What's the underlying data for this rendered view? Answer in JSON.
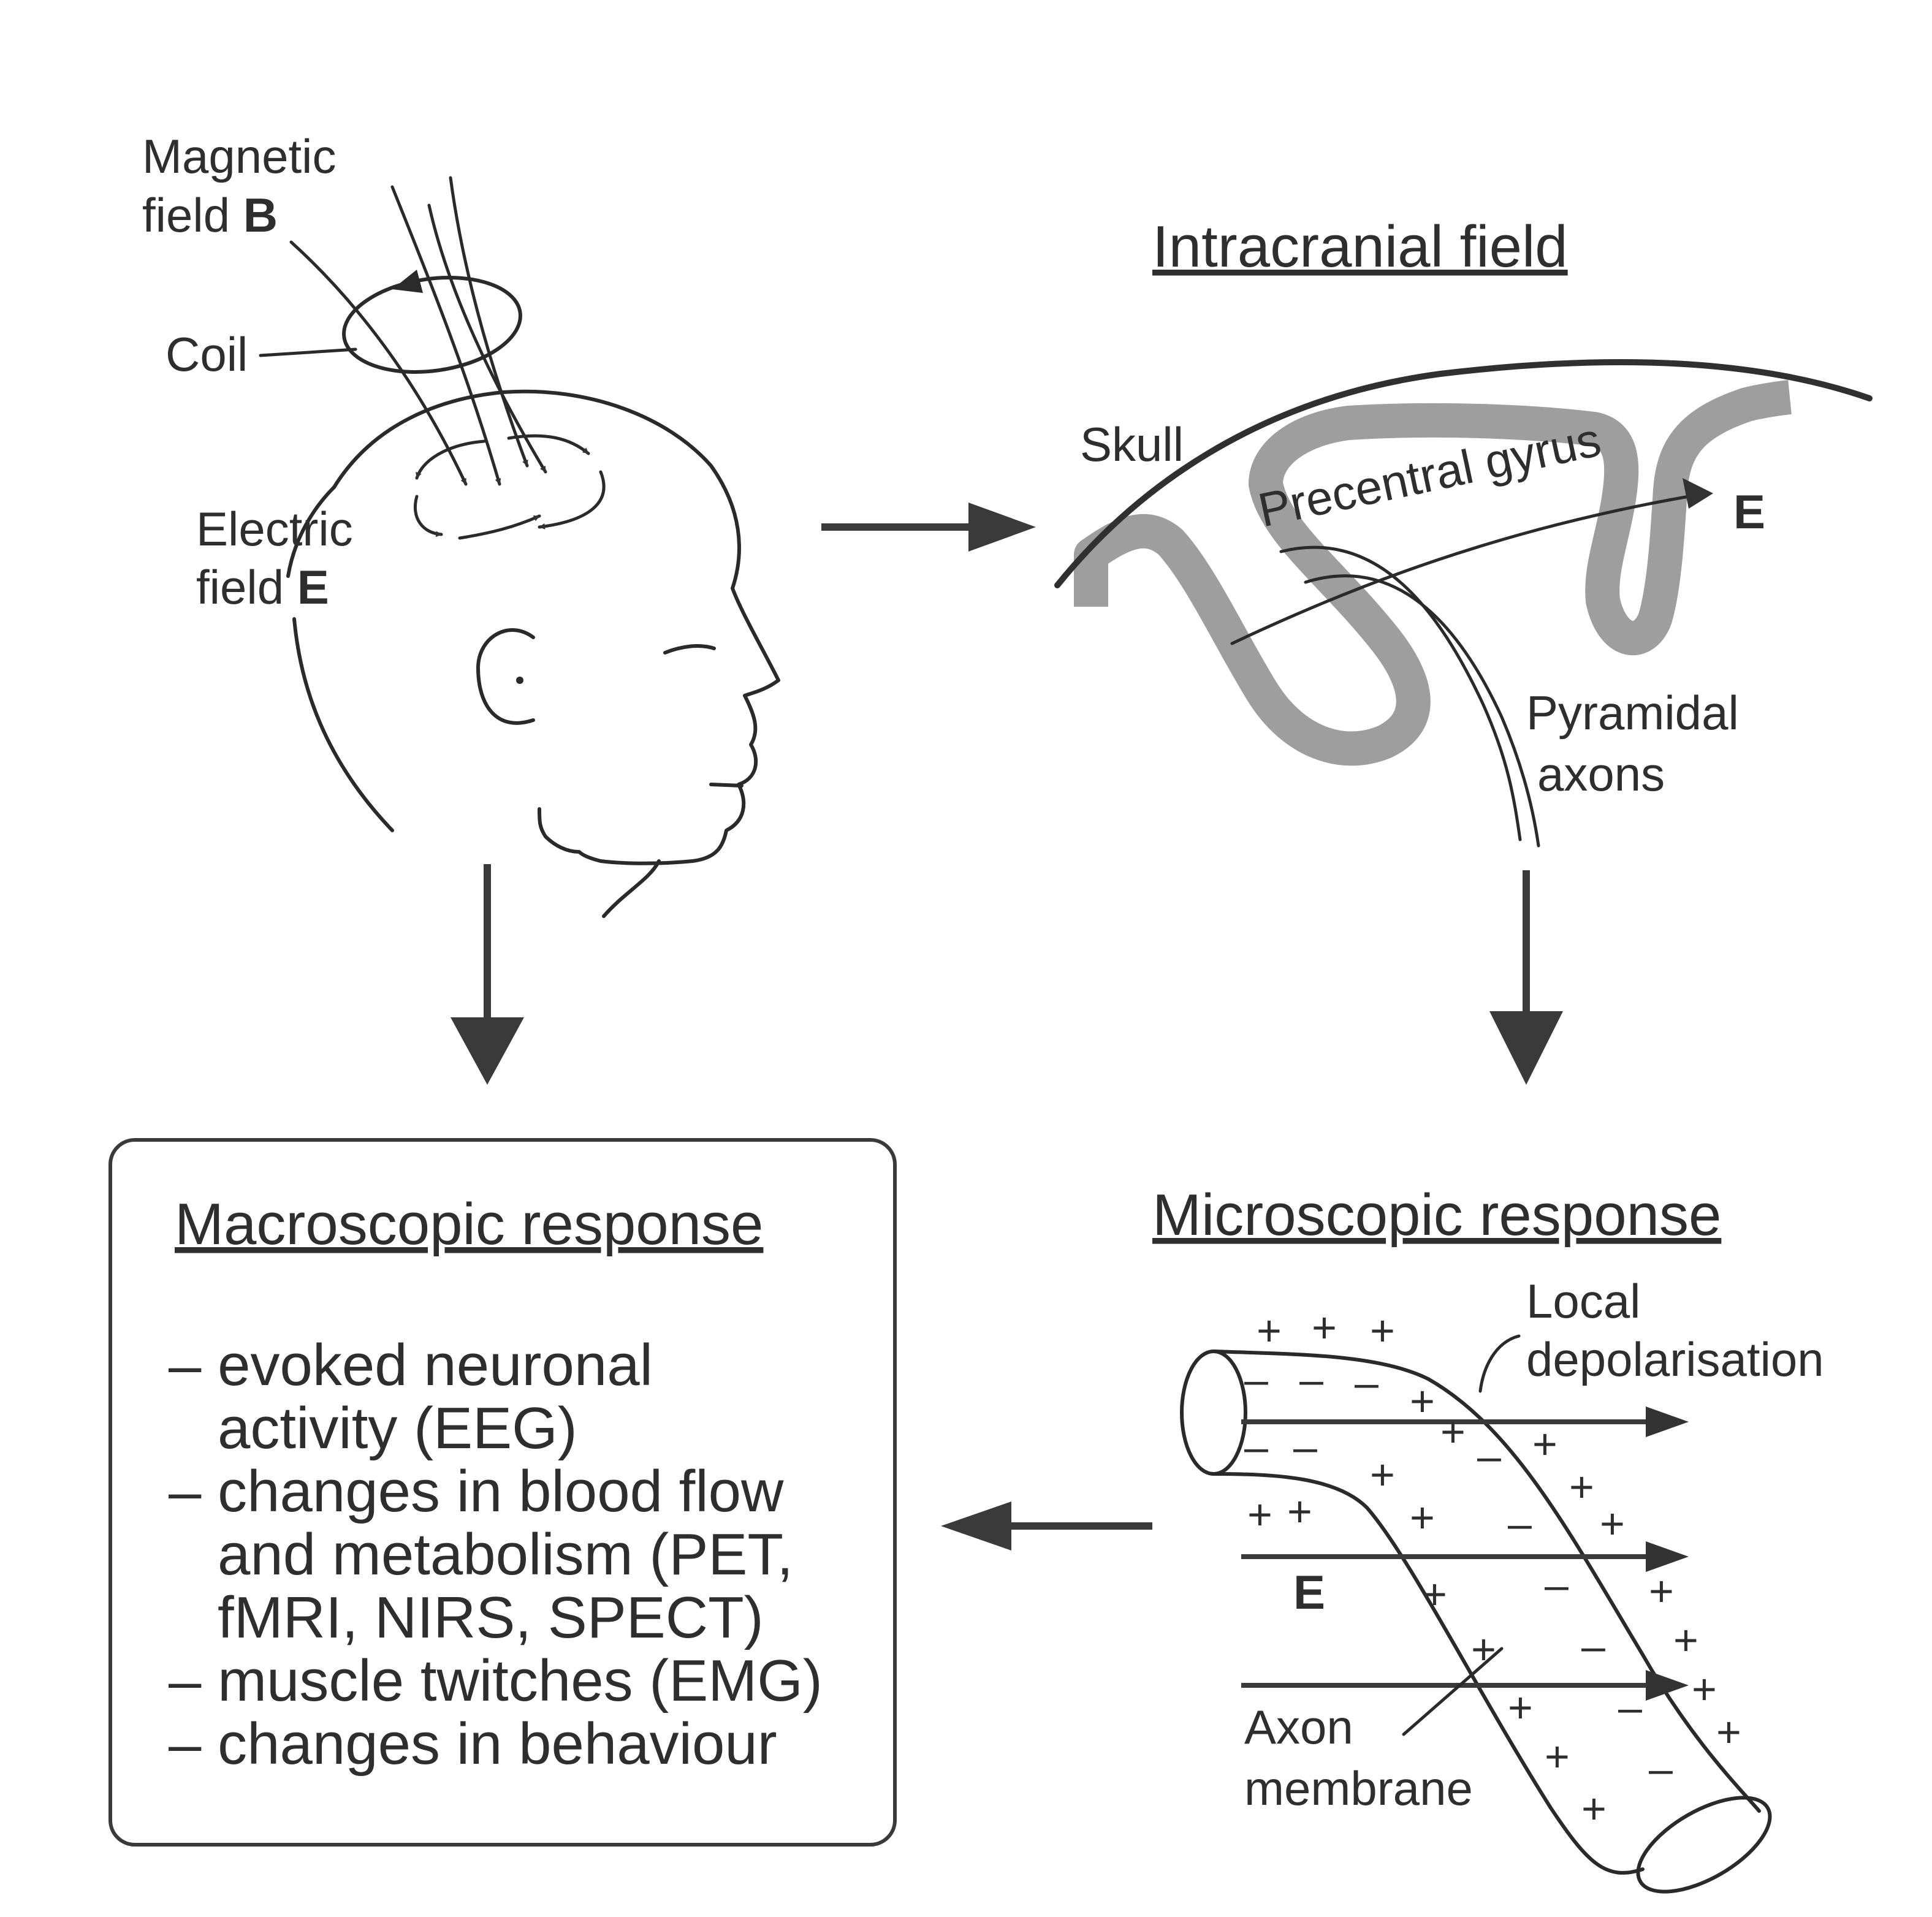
{
  "head_panel": {
    "magnetic_field_line1": "Magnetic",
    "magnetic_field_line2_prefix": "field ",
    "magnetic_field_symbol": "B",
    "coil_label": "Coil",
    "electric_field_line1": "Electric",
    "electric_field_line2_prefix": "field ",
    "electric_field_symbol": "E"
  },
  "intracranial_panel": {
    "title": "Intracranial field",
    "skull_label": "Skull",
    "gyrus_label": "Precentral gyrus",
    "field_symbol": "E",
    "axons_line1": "Pyramidal",
    "axons_line2": "axons"
  },
  "microscopic_panel": {
    "title": "Microscopic response",
    "depolarisation_line1": "Local",
    "depolarisation_line2": "depolarisation",
    "field_symbol": "E",
    "membrane_line1": "Axon",
    "membrane_line2": "membrane",
    "plus_sign": "+",
    "minus_sign": "–"
  },
  "macroscopic_panel": {
    "title": "Macroscopic response",
    "items": [
      [
        "– evoked neuronal",
        "   activity (EEG)"
      ],
      [
        "– changes in blood flow",
        "   and metabolism (PET,",
        "   fMRI, NIRS, SPECT)"
      ],
      [
        "– muscle twitches (EMG)"
      ],
      [
        "– changes in behaviour"
      ]
    ]
  },
  "colors": {
    "ink": "#2e2e2e",
    "arrow": "#3a3a3a",
    "gyrus": "#9e9e9e",
    "background": "#ffffff"
  }
}
